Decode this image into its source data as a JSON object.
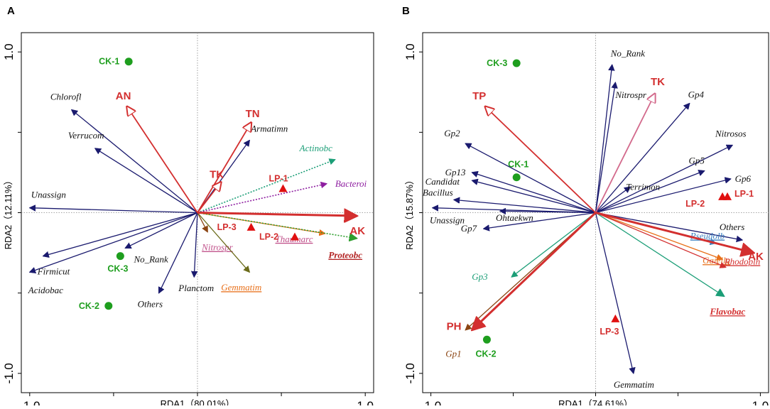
{
  "chart_data": [
    {
      "type": "scatter",
      "panel_label": "A",
      "title": "",
      "xlabel": "RDA1（80.01%）",
      "ylabel": "RDA2（12.11%）",
      "xlim": [
        -1.05,
        1.05
      ],
      "ylim": [
        -1.12,
        1.12
      ],
      "x_ticks": [
        {
          "value": -1,
          "label": "-1.0"
        },
        {
          "value": 1,
          "label": "1.0"
        }
      ],
      "y_ticks": [
        {
          "value": 1,
          "label": "1.0"
        },
        {
          "value": -1,
          "label": "-1.0"
        }
      ],
      "species_arrows": [
        {
          "name": "Chlorofl",
          "x": -0.75,
          "y": 0.64,
          "color": "#1a1a6e",
          "italic": true
        },
        {
          "name": "Verrucom",
          "x": -0.61,
          "y": 0.4,
          "color": "#1a1a6e",
          "italic": true
        },
        {
          "name": "Unassign",
          "x": -1.0,
          "y": 0.03,
          "color": "#1a1a6e",
          "italic": true
        },
        {
          "name": "Firmicut",
          "x": -0.92,
          "y": -0.27,
          "color": "#1a1a6e",
          "italic": true
        },
        {
          "name": "Acidobac",
          "x": -1.0,
          "y": -0.37,
          "color": "#1a1a6e",
          "italic": true
        },
        {
          "name": "No_Rank",
          "x": -0.43,
          "y": -0.22,
          "color": "#1a1a6e",
          "italic": true
        },
        {
          "name": "Others",
          "x": -0.23,
          "y": -0.5,
          "color": "#1a1a6e",
          "italic": true
        },
        {
          "name": "Planctom",
          "x": -0.02,
          "y": -0.4,
          "color": "#1a1a6e",
          "italic": true
        },
        {
          "name": "Armatimn",
          "x": 0.31,
          "y": 0.45,
          "color": "#1a1a6e",
          "italic": true
        },
        {
          "name": "Actinobc",
          "x": 0.82,
          "y": 0.33,
          "color": "#1b9e77",
          "italic": true,
          "dashed": true
        },
        {
          "name": "Bacteroi",
          "x": 0.77,
          "y": 0.18,
          "color": "#8e1ea0",
          "italic": true,
          "dashed": true
        },
        {
          "name": "Nitrospr",
          "x": 0.06,
          "y": -0.12,
          "color": "#8b4513",
          "italic": true,
          "underline": true,
          "label_color": "#c0508a"
        },
        {
          "name": "Thaumarc",
          "x": 0.76,
          "y": -0.13,
          "color": "#e8701a",
          "italic": true,
          "underline": true,
          "label_color": "#c0508a"
        },
        {
          "name": "Proteobc",
          "x": 0.95,
          "y": -0.16,
          "color": "#2e9e2e",
          "italic": true,
          "underline": true,
          "bold": true,
          "label_color": "#b22222",
          "dashed": true
        },
        {
          "name": "Gemmatim",
          "x": 0.31,
          "y": -0.37,
          "color": "#6b6b1a",
          "italic": true,
          "underline": true,
          "label_color": "#e8701a"
        }
      ],
      "env_arrows": [
        {
          "name": "AN",
          "x": -0.42,
          "y": 0.66,
          "color": "#d32f2f"
        },
        {
          "name": "TN",
          "x": 0.32,
          "y": 0.56,
          "color": "#d32f2f"
        },
        {
          "name": "TK",
          "x": 0.14,
          "y": 0.19,
          "color": "#d32f2f"
        },
        {
          "name": "AK",
          "x": 0.95,
          "y": -0.02,
          "color": "#d32f2f"
        }
      ],
      "samples": [
        {
          "name": "CK-1",
          "x": -0.41,
          "y": 0.94,
          "group": "CK"
        },
        {
          "name": "CK-3",
          "x": -0.46,
          "y": -0.27,
          "group": "CK"
        },
        {
          "name": "CK-2",
          "x": -0.53,
          "y": -0.58,
          "group": "CK"
        },
        {
          "name": "LP-1",
          "x": 0.51,
          "y": 0.15,
          "group": "LP"
        },
        {
          "name": "LP-3",
          "x": 0.32,
          "y": -0.09,
          "group": "LP"
        },
        {
          "name": "LP-2",
          "x": 0.58,
          "y": -0.15,
          "group": "LP"
        }
      ]
    },
    {
      "type": "scatter",
      "panel_label": "B",
      "title": "",
      "xlabel": "RDA1（74.61%）",
      "ylabel": "RDA2（15.87%）",
      "xlim": [
        -1.05,
        1.05
      ],
      "ylim": [
        -1.12,
        1.12
      ],
      "x_ticks": [
        {
          "value": -1,
          "label": "-1.0"
        },
        {
          "value": 1,
          "label": "1.0"
        }
      ],
      "y_ticks": [
        {
          "value": 1,
          "label": "1.0"
        },
        {
          "value": -1,
          "label": "-1.0"
        }
      ],
      "species_arrows": [
        {
          "name": "No_Rank",
          "x": 0.1,
          "y": 0.92,
          "color": "#1a1a6e",
          "italic": true
        },
        {
          "name": "Nitrospr",
          "x": 0.12,
          "y": 0.81,
          "color": "#1a1a6e",
          "italic": true
        },
        {
          "name": "Gp4",
          "x": 0.57,
          "y": 0.68,
          "color": "#1a1a6e",
          "italic": true
        },
        {
          "name": "Nitrosos",
          "x": 0.83,
          "y": 0.42,
          "color": "#1a1a6e",
          "italic": true
        },
        {
          "name": "Gp5",
          "x": 0.66,
          "y": 0.26,
          "color": "#1a1a6e",
          "italic": true
        },
        {
          "name": "Gp6",
          "x": 0.82,
          "y": 0.21,
          "color": "#1a1a6e",
          "italic": true
        },
        {
          "name": "Terrimon",
          "x": 0.21,
          "y": 0.16,
          "color": "#1a1a6e",
          "italic": true
        },
        {
          "name": "Gp2",
          "x": -0.79,
          "y": 0.43,
          "color": "#1a1a6e",
          "italic": true
        },
        {
          "name": "Gp13",
          "x": -0.75,
          "y": 0.25,
          "color": "#1a1a6e",
          "italic": true
        },
        {
          "name": "Candidat",
          "x": -0.75,
          "y": 0.2,
          "color": "#1a1a6e",
          "italic": true
        },
        {
          "name": "Bacillus",
          "x": -0.86,
          "y": 0.08,
          "color": "#1a1a6e",
          "italic": true
        },
        {
          "name": "Unassign",
          "x": -0.99,
          "y": 0.03,
          "color": "#1a1a6e",
          "italic": true
        },
        {
          "name": "Ohtaekwn",
          "x": -0.58,
          "y": 0.01,
          "color": "#1a1a6e",
          "italic": true
        },
        {
          "name": "Gp7",
          "x": -0.68,
          "y": -0.1,
          "color": "#1a1a6e",
          "italic": true
        },
        {
          "name": "Others",
          "x": 0.89,
          "y": -0.17,
          "color": "#1a1a6e",
          "italic": true
        },
        {
          "name": "Gemmatim",
          "x": 0.23,
          "y": -1.0,
          "color": "#1a1a6e",
          "italic": true
        },
        {
          "name": "Gp3",
          "x": -0.51,
          "y": -0.4,
          "color": "#1b9e77",
          "italic": true
        },
        {
          "name": "Gp1",
          "x": -0.79,
          "y": -0.73,
          "color": "#8b4513",
          "italic": true
        },
        {
          "name": "Pseudolb",
          "x": 0.73,
          "y": -0.19,
          "color": "#3a7fc0",
          "italic": true,
          "underline": true
        },
        {
          "name": "Gaiella",
          "x": 0.77,
          "y": -0.29,
          "color": "#e8701a",
          "italic": true,
          "underline": true
        },
        {
          "name": "Rhodopln",
          "x": 0.79,
          "y": -0.34,
          "color": "#d32f2f",
          "italic": true,
          "underline": true
        },
        {
          "name": "Flavobac",
          "x": 0.78,
          "y": -0.52,
          "color": "#1b9e77",
          "italic": true,
          "underline": true,
          "bold": true,
          "label_color": "#d32f2f"
        }
      ],
      "env_arrows": [
        {
          "name": "TK",
          "x": 0.36,
          "y": 0.74,
          "color": "#d36a8c"
        },
        {
          "name": "TP",
          "x": -0.67,
          "y": 0.66,
          "color": "#d32f2f"
        },
        {
          "name": "AK",
          "x": 0.96,
          "y": -0.25,
          "color": "#d32f2f"
        },
        {
          "name": "PH",
          "x": -0.75,
          "y": -0.73,
          "color": "#d32f2f"
        }
      ],
      "samples": [
        {
          "name": "CK-3",
          "x": -0.48,
          "y": 0.93,
          "group": "CK"
        },
        {
          "name": "CK-1",
          "x": -0.48,
          "y": 0.22,
          "group": "CK"
        },
        {
          "name": "CK-2",
          "x": -0.66,
          "y": -0.79,
          "group": "CK"
        },
        {
          "name": "LP-1",
          "x": 0.8,
          "y": 0.1,
          "group": "LP"
        },
        {
          "name": "LP-2",
          "x": 0.77,
          "y": 0.1,
          "group": "LP"
        },
        {
          "name": "LP-3",
          "x": 0.12,
          "y": -0.66,
          "group": "LP"
        }
      ]
    }
  ],
  "colors": {
    "ck_point": "#1e9e1e",
    "ck_label": "#1e9e1e",
    "lp_point": "#e01010",
    "lp_label": "#d32f2f",
    "env_label": "#d32f2f",
    "axis": "#000000",
    "reference_line": "#888888"
  }
}
